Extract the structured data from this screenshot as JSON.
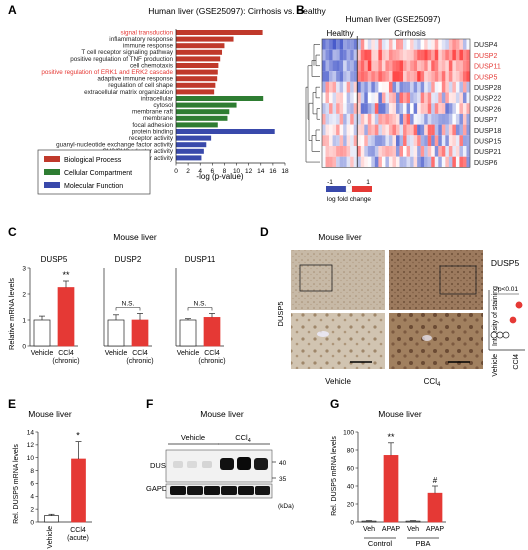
{
  "panels": {
    "A": {
      "letter": "A",
      "title": "Human liver (GSE25097): Cirrhosis vs. Healthy",
      "xlabel": "-log (p-value)",
      "legend": [
        {
          "label": "Biological Process",
          "color": "#c0392b"
        },
        {
          "label": "Cellular Compartment",
          "color": "#2e7d32"
        },
        {
          "label": "Molecular Function",
          "color": "#3949ab"
        }
      ]
    },
    "B": {
      "letter": "B",
      "title": "Human liver (GSE25097)",
      "group_healthy": "Healthy",
      "group_cirrhosis": "Cirrhosis",
      "scale_min": "-1",
      "scale_zero": "0",
      "scale_max": "1",
      "scale_label": "log fold change",
      "genes": [
        {
          "name": "DUSP4",
          "color": "#222"
        },
        {
          "name": "DUSP2",
          "color": "#e53935"
        },
        {
          "name": "DUSP11",
          "color": "#e53935"
        },
        {
          "name": "DUSP5",
          "color": "#e53935"
        },
        {
          "name": "DUSP28",
          "color": "#222"
        },
        {
          "name": "DUSP22",
          "color": "#222"
        },
        {
          "name": "DUSP26",
          "color": "#222"
        },
        {
          "name": "DUSP7",
          "color": "#222"
        },
        {
          "name": "DUSP18",
          "color": "#222"
        },
        {
          "name": "DUSP15",
          "color": "#222"
        },
        {
          "name": "DUSP21",
          "color": "#222"
        },
        {
          "name": "DUSP6",
          "color": "#222"
        }
      ]
    },
    "C": {
      "letter": "C",
      "title": "Mouse liver",
      "ylabel": "Relative mRNA levels",
      "sig_label": "**",
      "ns_label": "N.S."
    },
    "D": {
      "letter": "D",
      "title": "Mouse liver",
      "ylabel": "DUSP5",
      "label_vehicle": "Vehicle",
      "label_ccl4": "CCl",
      "label_ccl4_sub": "4",
      "right_title": "DUSP5",
      "right_ylabel": "Intensity of staining",
      "pvalue": "p<0.01",
      "xticks": [
        "Vehicle",
        "CCl4"
      ]
    },
    "E": {
      "letter": "E",
      "title": "Mouse liver",
      "ylabel": "Rel. DUSP5 mRNA levels",
      "sig_label": "*"
    },
    "F": {
      "letter": "F",
      "title": "Mouse liver",
      "group_vehicle": "Vehicle",
      "group_ccl4": "CCl",
      "group_ccl4_sub": "4",
      "row1": "DUSP5",
      "row2": "GAPDH",
      "mw_40": "40",
      "mw_35": "35",
      "unit": "(kDa)"
    },
    "G": {
      "letter": "G",
      "title": "Mouse liver",
      "ylabel": "Rel. DUSP5 mRNA levels",
      "sig_1": "**",
      "sig_2": "#",
      "group_control": "Control",
      "group_pba": "PBA"
    }
  },
  "chart_data": [
    {
      "id": "A",
      "type": "bar",
      "orientation": "horizontal",
      "title": "Human liver (GSE25097): Cirrhosis vs. Healthy",
      "xlabel": "-log (p-value)",
      "xlim": [
        0,
        18
      ],
      "xticks": [
        0,
        2,
        4,
        6,
        8,
        10,
        12,
        14,
        16,
        18
      ],
      "categories": [
        "signal transduction",
        "inflammatory response",
        "immune response",
        "T cell receptor signaling pathway",
        "positive regulation of TNF production",
        "cell chemotaxis",
        "positive regulation of ERK1 and ERK2 cascade",
        "adaptive immune response",
        "regulation of cell shape",
        "extracellular matrix organization",
        "intracellular",
        "cytosol",
        "membrane raft",
        "membrane",
        "focal adhesion",
        "protein binding",
        "receptor activity",
        "guanyl-nucleotide exchange factor activity",
        "SH3/SH2 adaptor activity",
        "GTPase activator activity"
      ],
      "values": [
        14.3,
        9.5,
        8.0,
        7.6,
        7.3,
        7.0,
        6.9,
        6.8,
        6.5,
        6.3,
        14.4,
        10.0,
        8.8,
        8.5,
        6.9,
        16.3,
        5.8,
        5.0,
        4.6,
        4.2
      ],
      "groups": [
        "BP",
        "BP",
        "BP",
        "BP",
        "BP",
        "BP",
        "BP",
        "BP",
        "BP",
        "BP",
        "CC",
        "CC",
        "CC",
        "CC",
        "CC",
        "MF",
        "MF",
        "MF",
        "MF",
        "MF"
      ],
      "highlight_categories": [
        "signal transduction",
        "positive regulation of ERK1 and ERK2 cascade"
      ]
    },
    {
      "id": "C-DUSP5",
      "type": "bar",
      "title": "DUSP5",
      "categories": [
        "Vehicle",
        "CCl4 (chronic)"
      ],
      "values": [
        1.0,
        2.25
      ],
      "errors": [
        0.15,
        0.25
      ],
      "ylim": [
        0,
        3
      ],
      "yticks": [
        0,
        1,
        2,
        3
      ]
    },
    {
      "id": "C-DUSP2",
      "type": "bar",
      "title": "DUSP2",
      "categories": [
        "Vehicle",
        "CCl4 (chronic)"
      ],
      "values": [
        1.0,
        1.0
      ],
      "errors": [
        0.2,
        0.25
      ],
      "ylim": [
        0,
        3
      ]
    },
    {
      "id": "C-DUSP11",
      "type": "bar",
      "title": "DUSP11",
      "categories": [
        "Vehicle",
        "CCl4 (chronic)"
      ],
      "values": [
        1.0,
        1.1
      ],
      "errors": [
        0.05,
        0.15
      ],
      "ylim": [
        0,
        3
      ]
    },
    {
      "id": "D",
      "type": "scatter",
      "title": "DUSP5",
      "ylabel": "Intensity of staining",
      "categories": [
        "Vehicle",
        "CCl4"
      ],
      "points": [
        {
          "x": "Vehicle",
          "y": 1
        },
        {
          "x": "Vehicle",
          "y": 1
        },
        {
          "x": "Vehicle",
          "y": 1
        },
        {
          "x": "CCl4",
          "y": 2
        },
        {
          "x": "CCl4",
          "y": 3
        },
        {
          "x": "CCl4",
          "y": 3
        }
      ],
      "ylim": [
        0,
        4
      ]
    },
    {
      "id": "E",
      "type": "bar",
      "title": "Mouse liver",
      "ylabel": "Rel. DUSP5 mRNA levels",
      "categories": [
        "Vehicle",
        "CCl4 (acute)"
      ],
      "values": [
        1.0,
        9.8
      ],
      "errors": [
        0.2,
        2.7
      ],
      "ylim": [
        0,
        14
      ],
      "yticks": [
        0,
        2,
        4,
        6,
        8,
        10,
        12,
        14
      ]
    },
    {
      "id": "G",
      "type": "bar",
      "title": "Mouse liver",
      "ylabel": "Rel. DUSP5 mRNA levels",
      "categories": [
        "Veh",
        "APAP",
        "Veh",
        "APAP"
      ],
      "groups": [
        "Control",
        "Control",
        "PBA",
        "PBA"
      ],
      "values": [
        1.0,
        74.0,
        1.0,
        32.0
      ],
      "errors": [
        0.5,
        14.0,
        0.5,
        8.0
      ],
      "ylim": [
        0,
        100
      ],
      "yticks": [
        0,
        20,
        40,
        60,
        80,
        100
      ]
    }
  ]
}
